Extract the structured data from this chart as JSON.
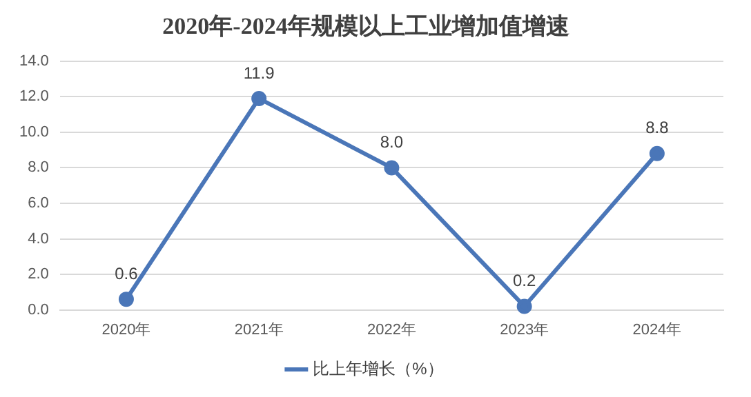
{
  "chart_data": {
    "type": "line",
    "title": "2020年-2024年规模以上工业增加值增速",
    "categories": [
      "2020年",
      "2021年",
      "2022年",
      "2023年",
      "2024年"
    ],
    "series": [
      {
        "name": "比上年增长（%）",
        "color": "#4a76b8",
        "values": [
          0.6,
          11.9,
          8.0,
          0.2,
          8.8
        ],
        "value_labels": [
          "0.6",
          "11.9",
          "8.0",
          "0.2",
          "8.8"
        ]
      }
    ],
    "ylim": [
      0,
      14
    ],
    "yticks": [
      {
        "value": 0,
        "label": "0.0"
      },
      {
        "value": 2,
        "label": "2.0"
      },
      {
        "value": 4,
        "label": "4.0"
      },
      {
        "value": 6,
        "label": "6.0"
      },
      {
        "value": 8,
        "label": "8.0"
      },
      {
        "value": 10,
        "label": "10.0"
      },
      {
        "value": 12,
        "label": "12.0"
      },
      {
        "value": 14,
        "label": "14.0"
      }
    ],
    "grid": "y",
    "legend": "bottom",
    "marker": "circle",
    "line_style": "solid"
  }
}
